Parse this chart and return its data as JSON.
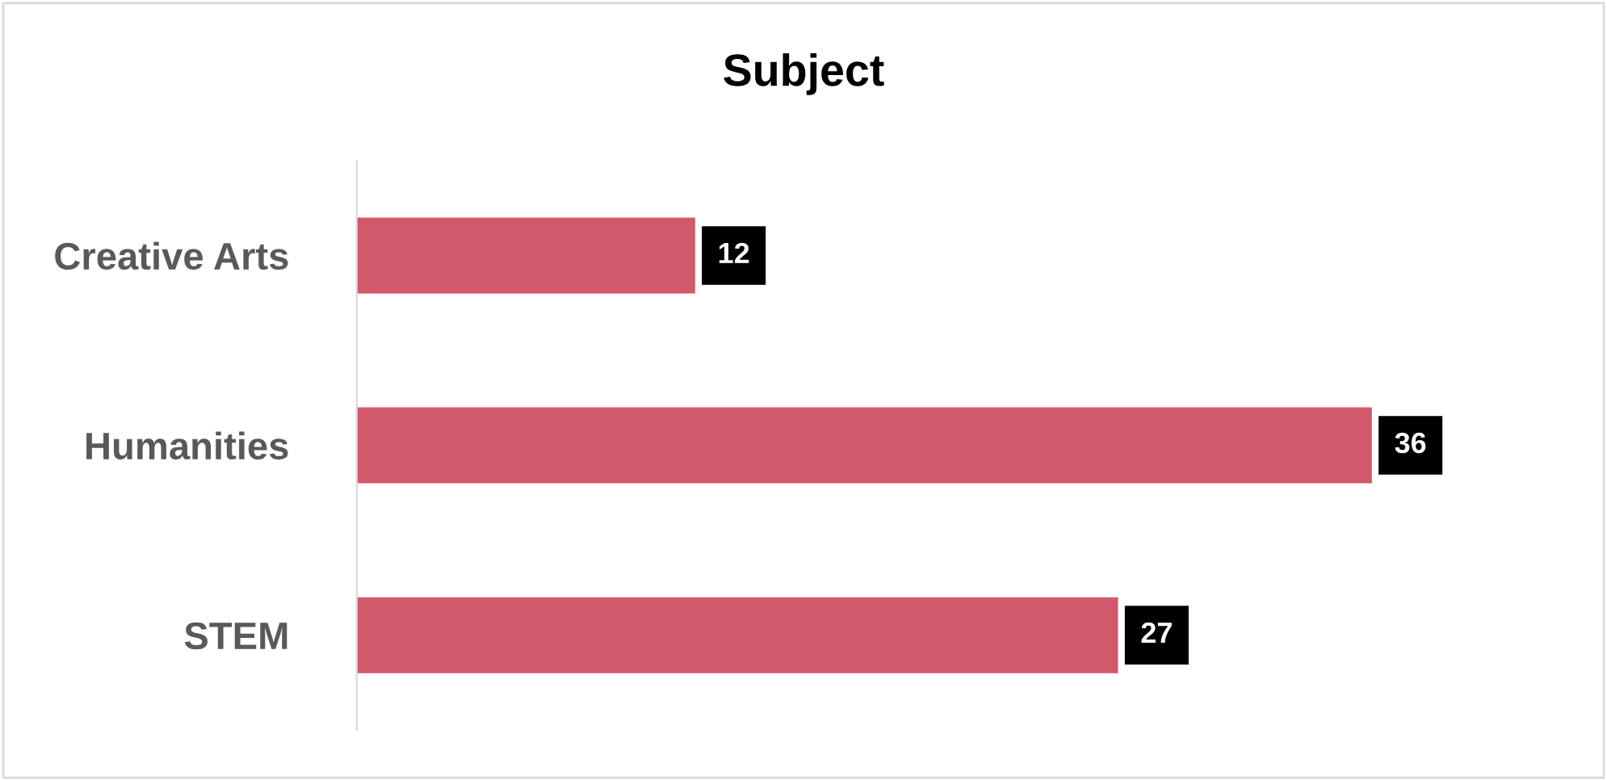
{
  "chart_data": {
    "type": "bar",
    "orientation": "horizontal",
    "title": "Subject",
    "categories": [
      "Creative Arts",
      "Humanities",
      "STEM"
    ],
    "values": [
      12,
      36,
      27
    ],
    "color": "#d2586b",
    "data_labels": true,
    "grid": false,
    "legend": false
  }
}
